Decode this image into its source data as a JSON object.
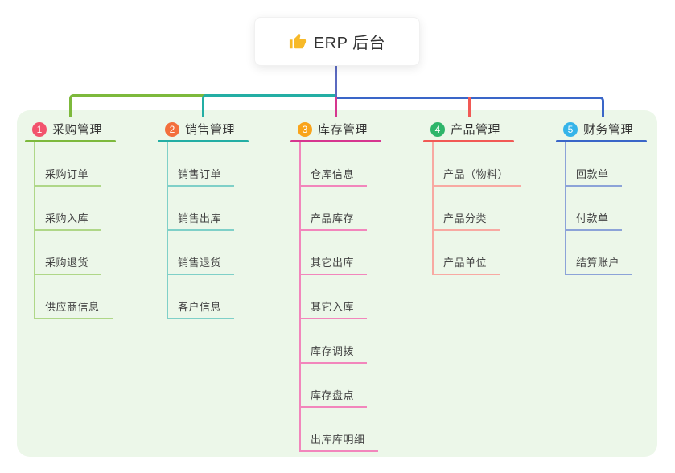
{
  "root": {
    "title": "ERP 后台",
    "icon": "thumbs-up-icon",
    "icon_color": "#F7B928"
  },
  "theme": {
    "canvas_bg": "#ffffff",
    "panel_bg": "#ECF7E9",
    "stem_color": "#5B6AC0",
    "title_text_color": "#333333",
    "child_text_color": "#444444"
  },
  "branches": [
    {
      "index": "1",
      "label": "采购管理",
      "badge_color": "#F2536D",
      "line_color": "#7DB93C",
      "child_line_color": "#AFD788",
      "children": [
        "采购订单",
        "采购入库",
        "采购退货",
        "供应商信息"
      ]
    },
    {
      "index": "2",
      "label": "销售管理",
      "badge_color": "#F36F3C",
      "line_color": "#23AEA4",
      "child_line_color": "#7FD0C8",
      "children": [
        "销售订单",
        "销售出库",
        "销售退货",
        "客户信息"
      ]
    },
    {
      "index": "3",
      "label": "库存管理",
      "badge_color": "#F9A41B",
      "line_color": "#D6368F",
      "child_line_color": "#F286BC",
      "children": [
        "仓库信息",
        "产品库存",
        "其它出库",
        "其它入库",
        "库存调拨",
        "库存盘点",
        "出库库明细"
      ]
    },
    {
      "index": "4",
      "label": "产品管理",
      "badge_color": "#2EB56A",
      "line_color": "#F15955",
      "child_line_color": "#F8A9A2",
      "children": [
        "产品（物料）",
        "产品分类",
        "产品单位"
      ]
    },
    {
      "index": "5",
      "label": "财务管理",
      "badge_color": "#35B4E9",
      "line_color": "#3A66C8",
      "child_line_color": "#8CA3D8",
      "children": [
        "回款单",
        "付款单",
        "结算账户"
      ]
    }
  ]
}
